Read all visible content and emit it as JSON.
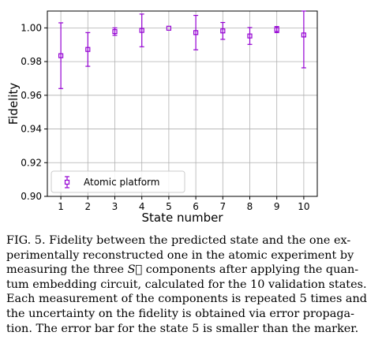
{
  "chart_data": {
    "type": "scatter",
    "title": "",
    "xlabel": "State number",
    "ylabel": "Fidelity",
    "xlim": [
      0.5,
      10.5
    ],
    "ylim": [
      0.9,
      1.01
    ],
    "grid": true,
    "legend_position": "lower-left",
    "x_ticks": [
      "1",
      "2",
      "3",
      "4",
      "5",
      "6",
      "7",
      "8",
      "9",
      "10"
    ],
    "y_ticks": [
      "0.90",
      "0.92",
      "0.94",
      "0.96",
      "0.98",
      "1.00"
    ],
    "series": [
      {
        "name": "Atomic platform",
        "color": "#9400d3",
        "marker": "square-open",
        "x": [
          1,
          2,
          3,
          4,
          5,
          6,
          7,
          8,
          9,
          10
        ],
        "y": [
          0.9835,
          0.9872,
          0.9978,
          0.9985,
          0.9998,
          0.9972,
          0.9982,
          0.9952,
          0.999,
          0.9958
        ],
        "err": [
          0.0195,
          0.01,
          0.0022,
          0.0097,
          0.0002,
          0.0102,
          0.005,
          0.005,
          0.0018,
          0.0195
        ]
      }
    ]
  },
  "caption": {
    "lines": [
      "FIG. 5. Fidelity between the predicted state and the one ex-",
      "perimentally reconstructed one in the atomic experiment by",
      "measuring the three",
      " components after applying the quan-",
      "tum embedding circuit, calculated for the 10 validation states.",
      "Each measurement of the components is repeated 5 times and",
      "the uncertainty on the fidelity is obtained via error propaga-",
      "tion. The error bar for the state 5 is smaller than the marker."
    ],
    "vector_symbol": "S⃗"
  }
}
